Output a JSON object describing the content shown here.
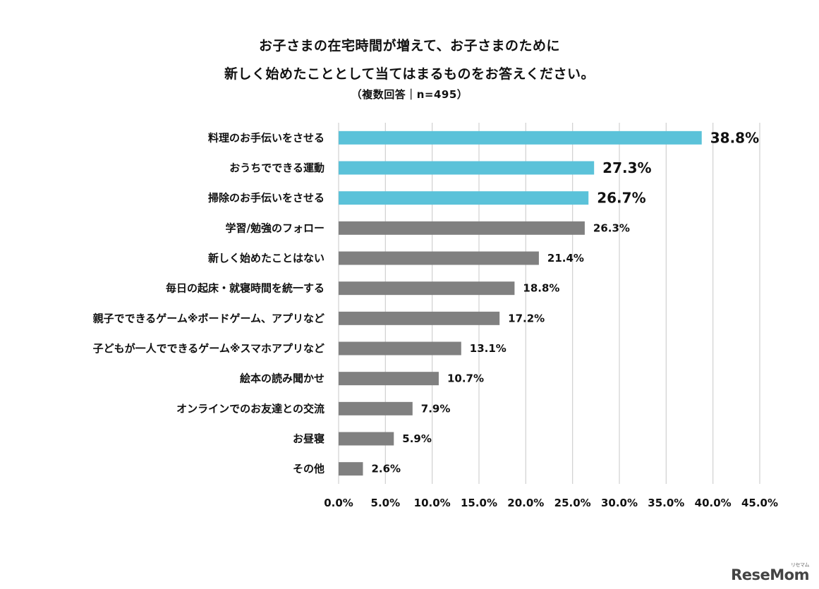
{
  "title": {
    "line1": "お子さまの在宅時間が増えて、お子さまのために",
    "line2": "新しく始めたこととして当てはまるものをお答えください。",
    "subtitle": "（複数回答｜n=495）"
  },
  "colors": {
    "highlight": "#5bc2d9",
    "default": "#808080",
    "grid": "#d0d0d0"
  },
  "chart_data": {
    "type": "bar",
    "orientation": "horizontal",
    "categories": [
      "料理のお手伝いをさせる",
      "おうちでできる運動",
      "掃除のお手伝いをさせる",
      "学習/勉強のフォロー",
      "新しく始めたことはない",
      "毎日の起床・就寝時間を統一する",
      "親子でできるゲーム※ボードゲーム、アプリなど",
      "子どもが一人でできるゲーム※スマホアプリなど",
      "絵本の読み聞かせ",
      "オンラインでのお友達との交流",
      "お昼寝",
      "その他"
    ],
    "values": [
      38.8,
      27.3,
      26.7,
      26.3,
      21.4,
      18.8,
      17.2,
      13.1,
      10.7,
      7.9,
      5.9,
      2.6
    ],
    "value_labels": [
      "38.8%",
      "27.3%",
      "26.7%",
      "26.3%",
      "21.4%",
      "18.8%",
      "17.2%",
      "13.1%",
      "10.7%",
      "7.9%",
      "5.9%",
      "2.6%"
    ],
    "highlighted": [
      true,
      true,
      true,
      false,
      false,
      false,
      false,
      false,
      false,
      false,
      false,
      false
    ],
    "xlim": [
      0,
      45
    ],
    "xticks": [
      "0.0%",
      "5.0%",
      "10.0%",
      "15.0%",
      "20.0%",
      "25.0%",
      "30.0%",
      "35.0%",
      "40.0%",
      "45.0%"
    ],
    "grid": "vertical"
  },
  "logo": {
    "text": "ReseMom",
    "small": "リセマム"
  }
}
